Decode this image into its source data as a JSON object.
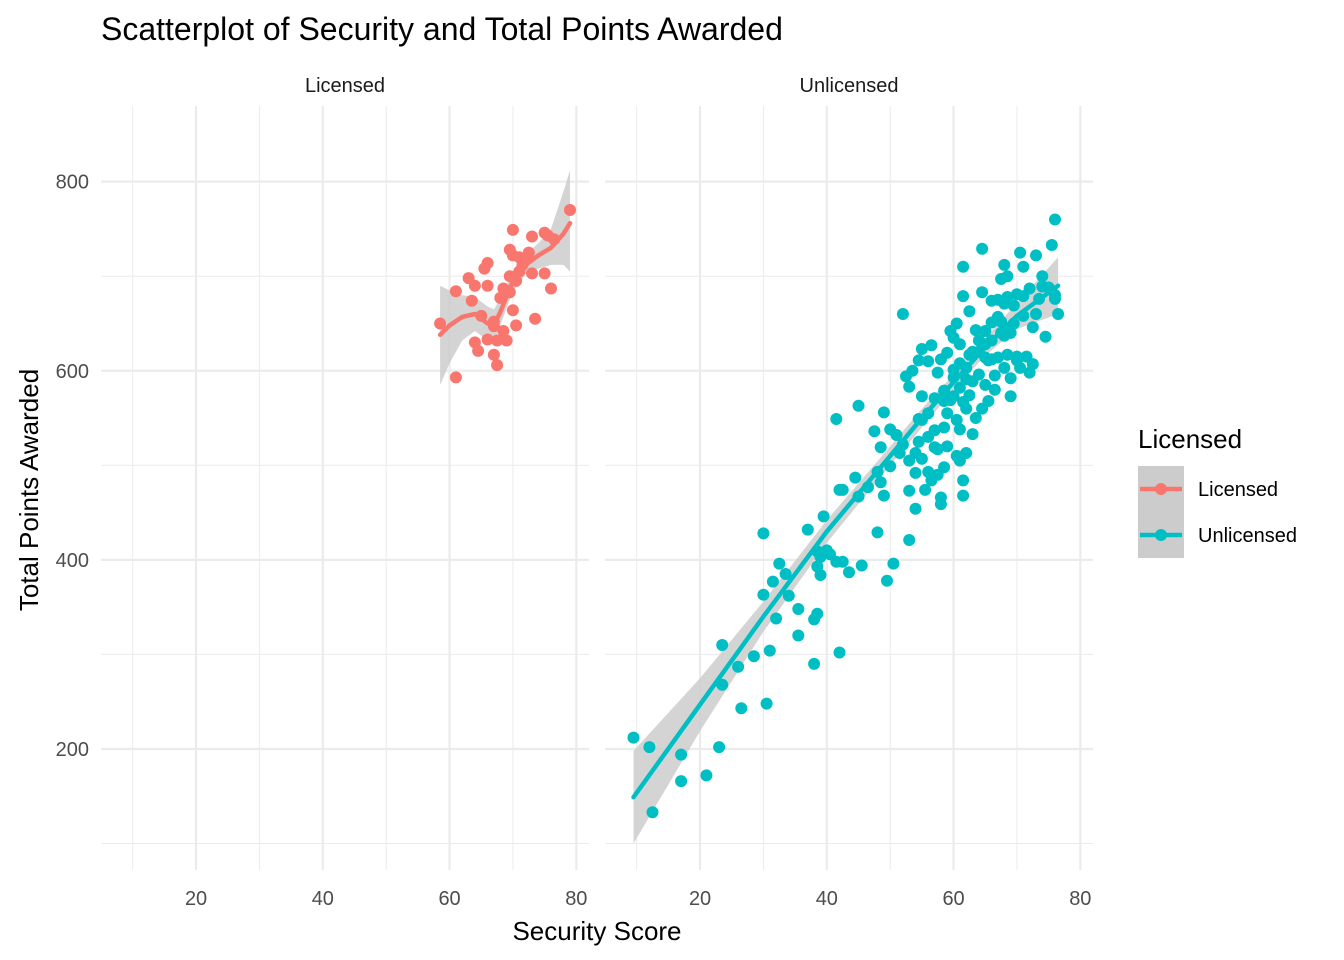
{
  "chart_data": {
    "type": "scatter",
    "title": "Scatterplot of Security and Total Points Awarded",
    "xlabel": "Security Score",
    "ylabel": "Total Points Awarded",
    "xlim": [
      5,
      82
    ],
    "ylim": [
      72,
      880
    ],
    "x_ticks": [
      20,
      40,
      60,
      80
    ],
    "y_ticks": [
      200,
      400,
      600,
      800
    ],
    "grid": true,
    "legend_title": "Licensed",
    "legend_position": "right",
    "colors": {
      "Licensed": "#F8766D",
      "Unlicensed": "#00BFC4",
      "ribbon": "#cccccc"
    },
    "panels": [
      {
        "strip": "Licensed",
        "series": "Licensed",
        "points": [
          [
            58.5,
            650
          ],
          [
            61,
            593
          ],
          [
            61,
            684
          ],
          [
            63,
            698
          ],
          [
            63.5,
            674
          ],
          [
            64,
            630
          ],
          [
            64,
            690
          ],
          [
            64.5,
            621
          ],
          [
            65,
            658
          ],
          [
            65.5,
            708
          ],
          [
            66,
            714
          ],
          [
            66,
            690
          ],
          [
            66,
            633
          ],
          [
            67,
            652
          ],
          [
            67,
            617
          ],
          [
            67,
            647
          ],
          [
            67.5,
            606
          ],
          [
            67.5,
            632
          ],
          [
            68,
            677
          ],
          [
            68.5,
            642
          ],
          [
            68.5,
            687
          ],
          [
            69,
            632
          ],
          [
            69.5,
            700
          ],
          [
            69.5,
            728
          ],
          [
            69.5,
            683
          ],
          [
            70,
            749
          ],
          [
            70,
            722
          ],
          [
            70,
            664
          ],
          [
            70.5,
            648
          ],
          [
            70.5,
            695
          ],
          [
            71,
            705
          ],
          [
            71,
            720
          ],
          [
            71.5,
            712
          ],
          [
            72,
            718
          ],
          [
            72.5,
            725
          ],
          [
            73,
            742
          ],
          [
            73,
            703
          ],
          [
            73.5,
            655
          ],
          [
            75,
            746
          ],
          [
            75,
            703
          ],
          [
            75.5,
            743
          ],
          [
            76,
            687
          ],
          [
            76.5,
            739
          ],
          [
            79,
            770
          ]
        ],
        "fit": [
          [
            58.5,
            638
          ],
          [
            60,
            648
          ],
          [
            62,
            657
          ],
          [
            64,
            660
          ],
          [
            66,
            650
          ],
          [
            67,
            648
          ],
          [
            68,
            662
          ],
          [
            70,
            695
          ],
          [
            72,
            712
          ],
          [
            74,
            722
          ],
          [
            76,
            730
          ],
          [
            78,
            745
          ],
          [
            79,
            756
          ]
        ],
        "ribbon_upper": [
          [
            58.5,
            690
          ],
          [
            60,
            685
          ],
          [
            62,
            680
          ],
          [
            64,
            678
          ],
          [
            66,
            668
          ],
          [
            67,
            665
          ],
          [
            68,
            676
          ],
          [
            70,
            705
          ],
          [
            72,
            722
          ],
          [
            74,
            735
          ],
          [
            76,
            750
          ],
          [
            78,
            790
          ],
          [
            79,
            812
          ]
        ],
        "ribbon_lower": [
          [
            58.5,
            585
          ],
          [
            60,
            608
          ],
          [
            62,
            632
          ],
          [
            64,
            642
          ],
          [
            66,
            632
          ],
          [
            67,
            630
          ],
          [
            68,
            648
          ],
          [
            70,
            684
          ],
          [
            72,
            702
          ],
          [
            74,
            708
          ],
          [
            76,
            712
          ],
          [
            78,
            712
          ],
          [
            79,
            705
          ]
        ]
      },
      {
        "strip": "Unlicensed",
        "series": "Unlicensed",
        "points": [
          [
            9.5,
            212
          ],
          [
            12,
            202
          ],
          [
            12.5,
            133
          ],
          [
            17,
            194
          ],
          [
            17,
            166
          ],
          [
            21,
            172
          ],
          [
            23,
            202
          ],
          [
            23.5,
            310
          ],
          [
            23.5,
            268
          ],
          [
            26,
            287
          ],
          [
            26.5,
            243
          ],
          [
            28.5,
            298
          ],
          [
            30,
            428
          ],
          [
            30,
            363
          ],
          [
            30.5,
            248
          ],
          [
            31,
            304
          ],
          [
            31.5,
            377
          ],
          [
            32,
            338
          ],
          [
            32.5,
            396
          ],
          [
            33.5,
            385
          ],
          [
            34,
            362
          ],
          [
            35.5,
            348
          ],
          [
            35.5,
            320
          ],
          [
            37,
            432
          ],
          [
            38,
            290
          ],
          [
            38,
            337
          ],
          [
            38.5,
            343
          ],
          [
            38.5,
            393
          ],
          [
            38.5,
            409
          ],
          [
            39,
            384
          ],
          [
            39,
            403
          ],
          [
            39.5,
            446
          ],
          [
            40,
            410
          ],
          [
            40.5,
            406
          ],
          [
            41.5,
            549
          ],
          [
            41.5,
            398
          ],
          [
            42,
            474
          ],
          [
            42,
            302
          ],
          [
            42.5,
            398
          ],
          [
            42.5,
            474
          ],
          [
            43.5,
            387
          ],
          [
            44.5,
            487
          ],
          [
            45,
            563
          ],
          [
            45,
            467
          ],
          [
            45.5,
            394
          ],
          [
            46.5,
            477
          ],
          [
            47.5,
            536
          ],
          [
            48,
            493
          ],
          [
            48,
            429
          ],
          [
            48.5,
            482
          ],
          [
            48.5,
            519
          ],
          [
            49,
            556
          ],
          [
            49,
            468
          ],
          [
            49.5,
            378
          ],
          [
            50,
            499
          ],
          [
            50,
            538
          ],
          [
            50.5,
            396
          ],
          [
            51,
            532
          ],
          [
            51.5,
            513
          ],
          [
            52,
            660
          ],
          [
            52,
            522
          ],
          [
            52.5,
            594
          ],
          [
            53,
            473
          ],
          [
            53,
            421
          ],
          [
            53,
            505
          ],
          [
            53,
            583
          ],
          [
            53.5,
            600
          ],
          [
            54,
            454
          ],
          [
            54,
            513
          ],
          [
            54,
            492
          ],
          [
            54.5,
            549
          ],
          [
            54.5,
            525
          ],
          [
            54.5,
            611
          ],
          [
            55,
            623
          ],
          [
            55,
            573
          ],
          [
            55,
            507
          ],
          [
            55.5,
            474
          ],
          [
            55,
            548
          ],
          [
            56,
            493
          ],
          [
            56,
            530
          ],
          [
            56,
            555
          ],
          [
            56,
            610
          ],
          [
            56.5,
            484
          ],
          [
            56.5,
            627
          ],
          [
            57,
            537
          ],
          [
            57,
            519
          ],
          [
            57,
            571
          ],
          [
            57.5,
            490
          ],
          [
            57.5,
            517
          ],
          [
            57.5,
            598
          ],
          [
            58,
            466
          ],
          [
            58,
            612
          ],
          [
            58,
            459
          ],
          [
            58.5,
            498
          ],
          [
            58.5,
            540
          ],
          [
            58.5,
            579
          ],
          [
            58.5,
            568
          ],
          [
            59,
            520
          ],
          [
            59,
            619
          ],
          [
            59,
            555
          ],
          [
            59.5,
            569
          ],
          [
            59.5,
            642
          ],
          [
            60,
            601
          ],
          [
            60,
            573
          ],
          [
            60,
            593
          ],
          [
            60,
            635
          ],
          [
            60.5,
            650
          ],
          [
            60.5,
            548
          ],
          [
            60.5,
            510
          ],
          [
            61,
            505
          ],
          [
            61,
            582
          ],
          [
            61,
            538
          ],
          [
            61,
            608
          ],
          [
            61,
            628
          ],
          [
            61.5,
            468
          ],
          [
            61.5,
            484
          ],
          [
            61.5,
            567
          ],
          [
            61.5,
            710
          ],
          [
            61.5,
            679
          ],
          [
            62,
            513
          ],
          [
            62,
            560
          ],
          [
            62,
            591
          ],
          [
            62,
            603
          ],
          [
            62.5,
            574
          ],
          [
            62.5,
            617
          ],
          [
            62.5,
            663
          ],
          [
            63,
            620
          ],
          [
            63,
            533
          ],
          [
            63,
            589
          ],
          [
            63.5,
            550
          ],
          [
            63.5,
            643
          ],
          [
            64,
            596
          ],
          [
            64,
            620
          ],
          [
            64,
            632
          ],
          [
            64.5,
            683
          ],
          [
            64.5,
            729
          ],
          [
            64.5,
            560
          ],
          [
            65,
            614
          ],
          [
            65,
            628
          ],
          [
            65,
            642
          ],
          [
            65,
            585
          ],
          [
            65.5,
            568
          ],
          [
            65.5,
            611
          ],
          [
            66,
            612
          ],
          [
            66,
            651
          ],
          [
            66,
            674
          ],
          [
            66,
            632
          ],
          [
            66.5,
            595
          ],
          [
            66.5,
            580
          ],
          [
            67,
            614
          ],
          [
            67,
            657
          ],
          [
            67,
            675
          ],
          [
            67.5,
            697
          ],
          [
            67.5,
            652
          ],
          [
            67.5,
            640
          ],
          [
            68,
            603
          ],
          [
            68,
            637
          ],
          [
            68,
            671
          ],
          [
            68,
            712
          ],
          [
            68.5,
            678
          ],
          [
            68.5,
            617
          ],
          [
            68.5,
            700
          ],
          [
            69,
            573
          ],
          [
            69,
            640
          ],
          [
            69,
            592
          ],
          [
            69.5,
            669
          ],
          [
            69.5,
            650
          ],
          [
            70,
            615
          ],
          [
            70,
            681
          ],
          [
            70,
            611
          ],
          [
            70.5,
            603
          ],
          [
            70.5,
            725
          ],
          [
            71,
            710
          ],
          [
            71,
            679
          ],
          [
            71,
            658
          ],
          [
            71.5,
            615
          ],
          [
            72,
            687
          ],
          [
            72,
            598
          ],
          [
            72.5,
            646
          ],
          [
            72.5,
            607
          ],
          [
            73,
            722
          ],
          [
            73,
            660
          ],
          [
            73.5,
            676
          ],
          [
            74,
            700
          ],
          [
            74,
            689
          ],
          [
            74.5,
            636
          ],
          [
            75,
            688
          ],
          [
            75.5,
            733
          ],
          [
            76,
            760
          ],
          [
            76,
            680
          ],
          [
            76,
            676
          ],
          [
            76.5,
            660
          ]
        ],
        "fit": [
          [
            9.5,
            149
          ],
          [
            20,
            247
          ],
          [
            30,
            340
          ],
          [
            40,
            430
          ],
          [
            50,
            510
          ],
          [
            55,
            550
          ],
          [
            60,
            588
          ],
          [
            65,
            625
          ],
          [
            70,
            658
          ],
          [
            76.5,
            690
          ]
        ],
        "ribbon_upper": [
          [
            9.5,
            198
          ],
          [
            20,
            275
          ],
          [
            30,
            356
          ],
          [
            40,
            442
          ],
          [
            50,
            520
          ],
          [
            55,
            560
          ],
          [
            60,
            596
          ],
          [
            65,
            634
          ],
          [
            70,
            672
          ],
          [
            76.5,
            720
          ]
        ],
        "ribbon_lower": [
          [
            9.5,
            100
          ],
          [
            20,
            219
          ],
          [
            30,
            324
          ],
          [
            40,
            418
          ],
          [
            50,
            500
          ],
          [
            55,
            540
          ],
          [
            60,
            580
          ],
          [
            65,
            616
          ],
          [
            70,
            644
          ],
          [
            76.5,
            660
          ]
        ]
      }
    ]
  }
}
